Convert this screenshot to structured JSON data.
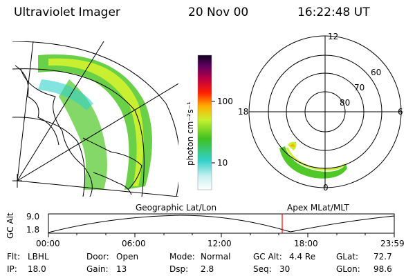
{
  "header": {
    "instrument": "Ultraviolet Imager",
    "date": "20 Nov 00",
    "time": "16:22:48 UT"
  },
  "colorbar": {
    "unit_label": "photon cm⁻²s⁻¹",
    "ticks": [
      "100",
      "10"
    ]
  },
  "polar": {
    "mlt_labels": [
      "12",
      "18",
      "6",
      "0"
    ],
    "lat_labels": [
      "60",
      "70",
      "80"
    ]
  },
  "timeline": {
    "left_title": "Geographic Lat/Lon",
    "right_title": "Apex MLat/MLT",
    "axis_name": "GC Alt",
    "y_ticks": [
      "9.0",
      "1.8"
    ],
    "x_ticks": [
      "00:00",
      "06:00",
      "12:00",
      "18:00",
      "23:59"
    ],
    "marker_color": "#ff0000"
  },
  "info": {
    "row1": [
      {
        "key": "Flt:",
        "val": "LBHL"
      },
      {
        "key": "Door:",
        "val": "Open"
      },
      {
        "key": "Mode:",
        "val": "Normal"
      },
      {
        "key": "GC Alt:",
        "val": "4.4 Re"
      },
      {
        "key": "GLat:",
        "val": "72.7"
      }
    ],
    "row2": [
      {
        "key": "IP:",
        "val": "18.0"
      },
      {
        "key": "Gain:",
        "val": "13"
      },
      {
        "key": "Dsp:",
        "val": "2.8"
      },
      {
        "key": "Seq:",
        "val": "30"
      },
      {
        "key": "GLon:",
        "val": "98.6"
      }
    ]
  }
}
